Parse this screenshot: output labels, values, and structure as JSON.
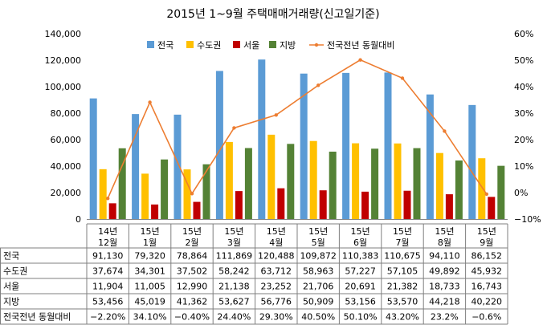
{
  "chart_data": {
    "type": "bar",
    "title": "2015년 1~9월 주택매매거래량(신고일기준)",
    "categories": [
      {
        "line1": "14년",
        "line2": "12월"
      },
      {
        "line1": "15년",
        "line2": "1월"
      },
      {
        "line1": "15년",
        "line2": "2월"
      },
      {
        "line1": "15년",
        "line2": "3월"
      },
      {
        "line1": "15년",
        "line2": "4월"
      },
      {
        "line1": "15년",
        "line2": "5월"
      },
      {
        "line1": "15년",
        "line2": "6월"
      },
      {
        "line1": "15년",
        "line2": "7월"
      },
      {
        "line1": "15년",
        "line2": "8월"
      },
      {
        "line1": "15년",
        "line2": "9월"
      }
    ],
    "series": [
      {
        "name": "전국",
        "kind": "bar",
        "axis": "left",
        "color": "#5B9BD5",
        "values": [
          91130,
          79320,
          78864,
          111869,
          120488,
          109872,
          110383,
          110675,
          94110,
          86152
        ],
        "labels": [
          "91,130",
          "79,320",
          "78,864",
          "111,869",
          "120,488",
          "109,872",
          "110,383",
          "110,675",
          "94,110",
          "86,152"
        ]
      },
      {
        "name": "수도권",
        "kind": "bar",
        "axis": "left",
        "color": "#FFC000",
        "values": [
          37674,
          34301,
          37502,
          58242,
          63712,
          58963,
          57227,
          57105,
          49892,
          45932
        ],
        "labels": [
          "37,674",
          "34,301",
          "37,502",
          "58,242",
          "63,712",
          "58,963",
          "57,227",
          "57,105",
          "49,892",
          "45,932"
        ]
      },
      {
        "name": "서울",
        "kind": "bar",
        "axis": "left",
        "color": "#C00000",
        "values": [
          11904,
          11005,
          12990,
          21138,
          23252,
          21706,
          20691,
          21382,
          18733,
          16743
        ],
        "labels": [
          "11,904",
          "11,005",
          "12,990",
          "21,138",
          "23,252",
          "21,706",
          "20,691",
          "21,382",
          "18,733",
          "16,743"
        ]
      },
      {
        "name": "지방",
        "kind": "bar",
        "axis": "left",
        "color": "#548235",
        "values": [
          53456,
          45019,
          41362,
          53627,
          56776,
          50909,
          53156,
          53570,
          44218,
          40220
        ],
        "labels": [
          "53,456",
          "45,019",
          "41,362",
          "53,627",
          "56,776",
          "50,909",
          "53,156",
          "53,570",
          "44,218",
          "40,220"
        ]
      },
      {
        "name": "전국전년 동월대비",
        "kind": "line",
        "axis": "right",
        "color": "#ED7D31",
        "values": [
          -2.2,
          34.1,
          -0.4,
          24.4,
          29.3,
          40.5,
          50.1,
          43.2,
          23.2,
          -0.6
        ],
        "labels": [
          "−2.20%",
          "34.10%",
          "−0.40%",
          "24.40%",
          "29.30%",
          "40.50%",
          "50.10%",
          "43.20%",
          "23.2%",
          "−0.6%"
        ]
      }
    ],
    "y_left": {
      "range": [
        0,
        140000
      ],
      "ticks": [
        "0",
        "20,000",
        "40,000",
        "60,000",
        "80,000",
        "100,000",
        "120,000",
        "140,000"
      ]
    },
    "y_right": {
      "range": [
        -10,
        60
      ],
      "ticks": [
        "−10%",
        "0%",
        "10%",
        "20%",
        "30%",
        "40%",
        "50%",
        "60%"
      ]
    },
    "grid": false,
    "legend_position": "top"
  }
}
